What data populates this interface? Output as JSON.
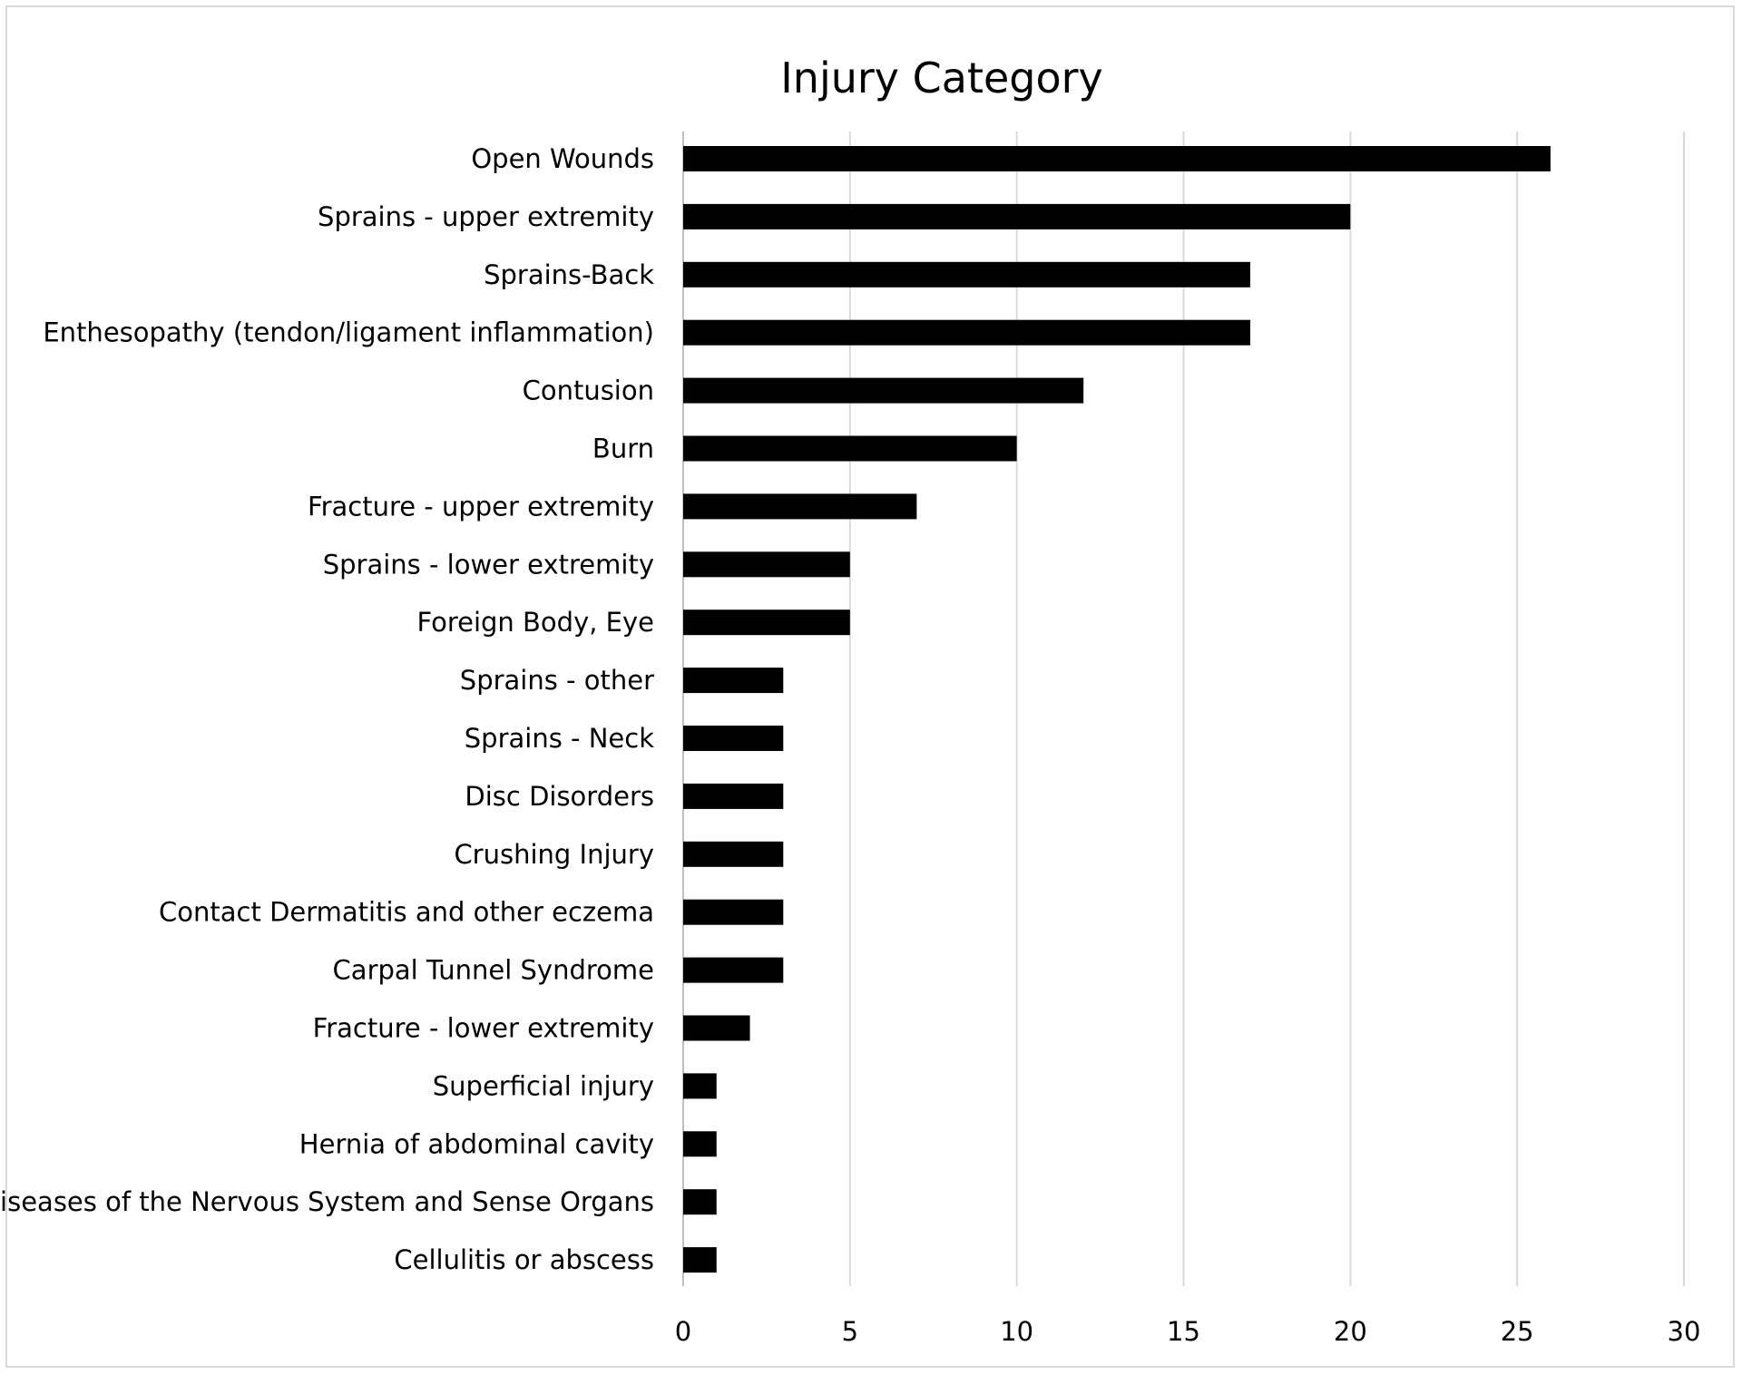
{
  "chart_data": {
    "type": "bar",
    "orientation": "horizontal",
    "title": "Injury Category",
    "xlabel": "",
    "ylabel": "",
    "xlim": [
      0,
      30
    ],
    "ticks": [
      0,
      5,
      10,
      15,
      20,
      25,
      30
    ],
    "grid": "vertical",
    "legend": "none",
    "bar_color": "#000000",
    "grid_color": "#d9d9d9",
    "categories": [
      "Open Wounds",
      "Sprains - upper extremity",
      "Sprains-Back",
      "Enthesopathy (tendon/ligament inflammation)",
      "Contusion",
      "Burn",
      "Fracture - upper extremity",
      "Sprains - lower extremity",
      "Foreign Body, Eye",
      "Sprains - other",
      "Sprains - Neck",
      "Disc Disorders",
      "Crushing Injury",
      "Contact Dermatitis and other eczema",
      "Carpal Tunnel Syndrome",
      "Fracture - lower extremity",
      "Superficial injury",
      "Hernia of abdominal cavity",
      "Diseases of the Nervous System and Sense Organs",
      "Cellulitis or abscess"
    ],
    "values": [
      26,
      20,
      17,
      17,
      12,
      10,
      7,
      5,
      5,
      3,
      3,
      3,
      3,
      3,
      3,
      2,
      1,
      1,
      1,
      1
    ]
  }
}
